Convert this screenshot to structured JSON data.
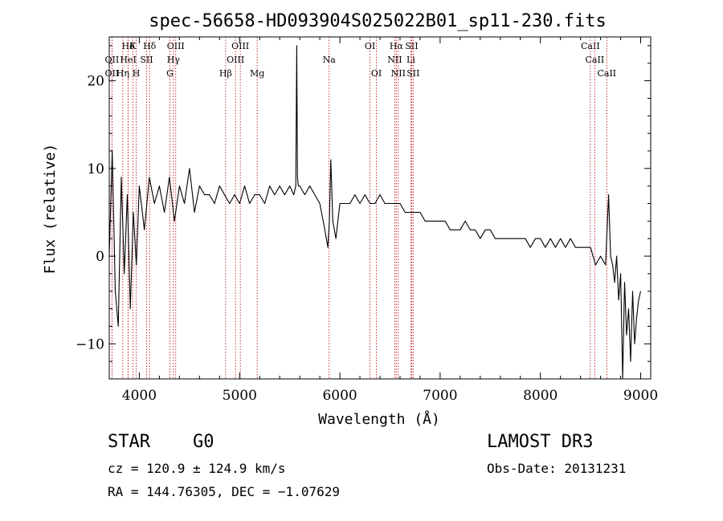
{
  "chart_data": {
    "type": "line",
    "title": "spec-56658-HD093904S025022B01_sp11-230.fits",
    "xlabel": "Wavelength (Å)",
    "ylabel": "Flux (relative)",
    "xlim": [
      3700,
      9100
    ],
    "ylim": [
      -14,
      25
    ],
    "xticks": [
      4000,
      5000,
      6000,
      7000,
      8000,
      9000
    ],
    "yticks": [
      -10,
      0,
      10,
      20
    ],
    "grid": false,
    "series": [
      {
        "name": "flux",
        "color": "#000000",
        "x": [
          3700,
          3730,
          3760,
          3790,
          3820,
          3850,
          3880,
          3910,
          3940,
          3970,
          4000,
          4050,
          4100,
          4150,
          4200,
          4250,
          4300,
          4350,
          4400,
          4450,
          4500,
          4550,
          4600,
          4650,
          4700,
          4750,
          4800,
          4850,
          4900,
          4950,
          5000,
          5050,
          5100,
          5150,
          5200,
          5250,
          5300,
          5350,
          5400,
          5450,
          5500,
          5540,
          5560,
          5570,
          5577,
          5585,
          5600,
          5650,
          5700,
          5750,
          5800,
          5850,
          5880,
          5895,
          5910,
          5930,
          5960,
          6000,
          6050,
          6100,
          6150,
          6200,
          6250,
          6300,
          6350,
          6400,
          6450,
          6500,
          6550,
          6600,
          6650,
          6700,
          6750,
          6800,
          6850,
          6900,
          6950,
          7000,
          7050,
          7100,
          7150,
          7200,
          7250,
          7300,
          7350,
          7400,
          7450,
          7500,
          7550,
          7600,
          7650,
          7700,
          7750,
          7800,
          7850,
          7900,
          7950,
          8000,
          8050,
          8100,
          8150,
          8200,
          8250,
          8300,
          8350,
          8400,
          8450,
          8500,
          8550,
          8600,
          8650,
          8680,
          8700,
          8720,
          8740,
          8760,
          8780,
          8800,
          8820,
          8840,
          8860,
          8880,
          8900,
          8920,
          8940,
          8960,
          8980,
          9000
        ],
        "values": [
          0,
          12,
          -4,
          -8,
          9,
          -2,
          7,
          -6,
          5,
          -1,
          8,
          3,
          9,
          6,
          8,
          5,
          9,
          4,
          8,
          6,
          10,
          5,
          8,
          7,
          7,
          6,
          8,
          7,
          6,
          7,
          6,
          8,
          6,
          7,
          7,
          6,
          8,
          7,
          8,
          7,
          8,
          7,
          8,
          24,
          9,
          8,
          8,
          7,
          8,
          7,
          6,
          3,
          1,
          4,
          11,
          4,
          2,
          6,
          6,
          6,
          7,
          6,
          7,
          6,
          6,
          7,
          6,
          6,
          6,
          6,
          5,
          5,
          5,
          5,
          4,
          4,
          4,
          4,
          4,
          3,
          3,
          3,
          4,
          3,
          3,
          2,
          3,
          3,
          2,
          2,
          2,
          2,
          2,
          2,
          2,
          1,
          2,
          2,
          1,
          2,
          1,
          2,
          1,
          2,
          1,
          1,
          1,
          1,
          -1,
          0,
          -1,
          7,
          0,
          -1,
          -3,
          0,
          -5,
          -2,
          -14,
          -3,
          -9,
          -6,
          -12,
          -4,
          -10,
          -7,
          -5,
          -4
        ]
      }
    ],
    "lines": [
      {
        "name": "Hδ",
        "wl": 3889,
        "row": 0
      },
      {
        "name": "K",
        "wl": 3934,
        "row": 0
      },
      {
        "name": "Hδ",
        "wl": 4102,
        "row": 0
      },
      {
        "name": "OII",
        "wl": 3727,
        "row": 1
      },
      {
        "name": "HeI",
        "wl": 3889,
        "row": 1
      },
      {
        "name": "SII",
        "wl": 4072,
        "row": 1
      },
      {
        "name": "OII",
        "wl": 3727,
        "row": 2
      },
      {
        "name": "Hη",
        "wl": 3835,
        "row": 2
      },
      {
        "name": "H",
        "wl": 3969,
        "row": 2
      },
      {
        "name": "OIII",
        "wl": 4363,
        "row": 0
      },
      {
        "name": "Hγ",
        "wl": 4340,
        "row": 1
      },
      {
        "name": "G",
        "wl": 4305,
        "row": 2
      },
      {
        "name": "OIII",
        "wl": 5007,
        "row": 0
      },
      {
        "name": "OIII",
        "wl": 4959,
        "row": 1
      },
      {
        "name": "Hβ",
        "wl": 4861,
        "row": 2
      },
      {
        "name": "Mg",
        "wl": 5175,
        "row": 2
      },
      {
        "name": "Na",
        "wl": 5893,
        "row": 1
      },
      {
        "name": "OI",
        "wl": 6300,
        "row": 0
      },
      {
        "name": "OI",
        "wl": 6364,
        "row": 2
      },
      {
        "name": "Hα",
        "wl": 6563,
        "row": 0
      },
      {
        "name": "SII",
        "wl": 6716,
        "row": 0
      },
      {
        "name": "NII",
        "wl": 6548,
        "row": 1
      },
      {
        "name": "Li",
        "wl": 6708,
        "row": 1
      },
      {
        "name": "NII",
        "wl": 6583,
        "row": 2
      },
      {
        "name": "SII",
        "wl": 6731,
        "row": 2
      },
      {
        "name": "CaII",
        "wl": 8498,
        "row": 0
      },
      {
        "name": "CaII",
        "wl": 8542,
        "row": 1
      },
      {
        "name": "CaII",
        "wl": 8662,
        "row": 2
      }
    ],
    "line_color": "#c00000"
  },
  "info": {
    "object_class": "STAR",
    "subclass": "G0",
    "survey": "LAMOST DR3",
    "redshift": "cz = 120.9 ± 124.9 km/s",
    "obs_date": "Obs-Date: 20131231",
    "coords": "RA = 144.76305, DEC =  −1.07629"
  }
}
